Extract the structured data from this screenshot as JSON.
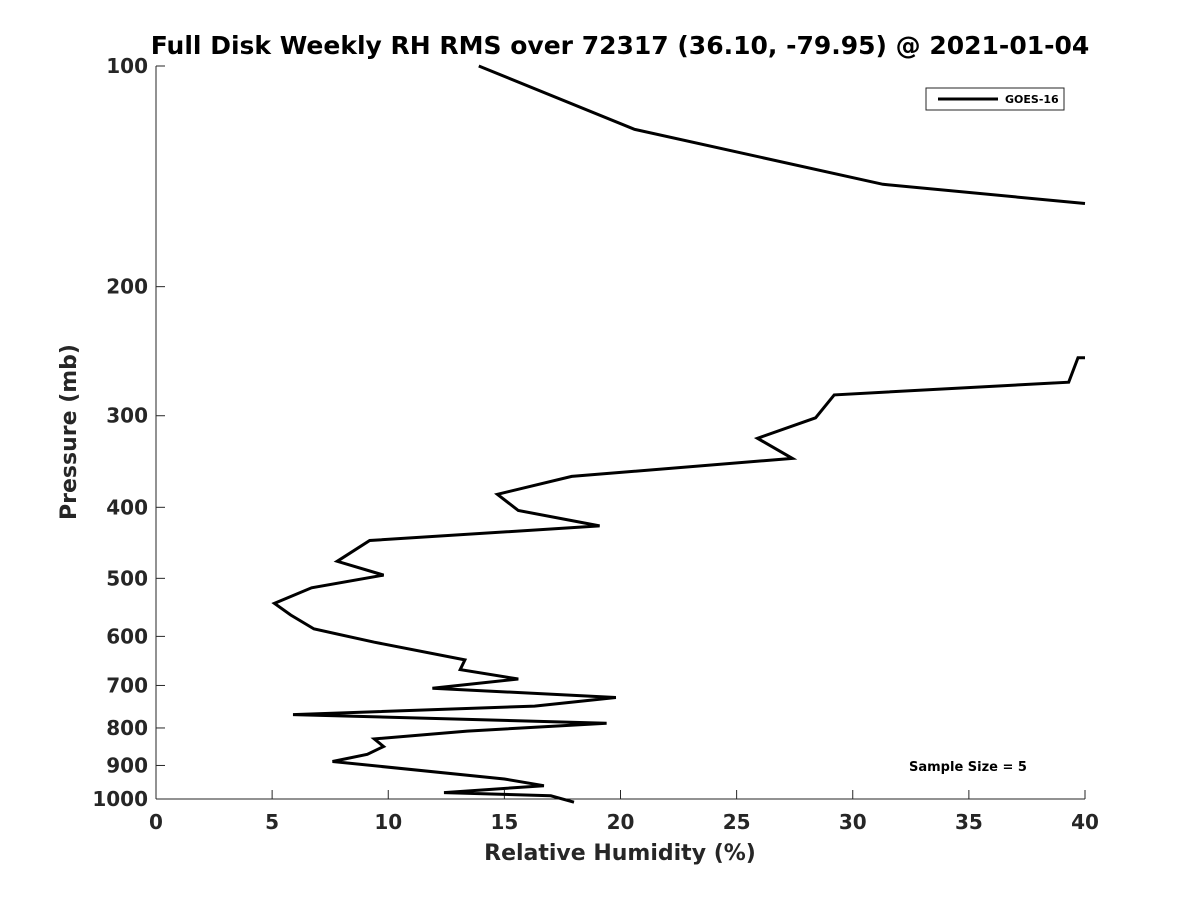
{
  "chart_data": {
    "type": "line",
    "title": "Full Disk Weekly RH RMS over 72317 (36.10, -79.95) @ 2021-01-04",
    "xlabel": "Relative Humidity (%)",
    "ylabel": "Pressure (mb)",
    "xlim": [
      0,
      40
    ],
    "ylim": [
      1000,
      100
    ],
    "y_scale": "log",
    "x_ticks": [
      0,
      5,
      10,
      15,
      20,
      25,
      30,
      35,
      40
    ],
    "y_ticks": [
      100,
      200,
      300,
      400,
      500,
      600,
      700,
      800,
      900,
      1000
    ],
    "grid": false,
    "legend": {
      "position": "top-right",
      "entries": [
        "GOES-16"
      ]
    },
    "annotations": [
      {
        "text": "Sample Size = 5",
        "position": "bottom-right"
      }
    ],
    "series": [
      {
        "name": "GOES-16",
        "color": "#000000",
        "segments": [
          [
            {
              "x": 13.9,
              "y": 100
            },
            {
              "x": 20.6,
              "y": 122
            },
            {
              "x": 31.3,
              "y": 145
            },
            {
              "x": 40.0,
              "y": 154
            }
          ],
          [
            {
              "x": 40.0,
              "y": 250
            },
            {
              "x": 39.7,
              "y": 250
            },
            {
              "x": 39.3,
              "y": 270
            },
            {
              "x": 29.2,
              "y": 281
            },
            {
              "x": 28.4,
              "y": 302
            },
            {
              "x": 25.9,
              "y": 322
            },
            {
              "x": 27.4,
              "y": 343
            },
            {
              "x": 17.9,
              "y": 363
            },
            {
              "x": 14.7,
              "y": 384
            },
            {
              "x": 15.6,
              "y": 404
            },
            {
              "x": 19.1,
              "y": 424
            },
            {
              "x": 9.2,
              "y": 444
            },
            {
              "x": 7.8,
              "y": 474
            },
            {
              "x": 9.8,
              "y": 495
            },
            {
              "x": 6.7,
              "y": 515
            },
            {
              "x": 5.1,
              "y": 541
            },
            {
              "x": 5.8,
              "y": 561
            },
            {
              "x": 6.8,
              "y": 586
            },
            {
              "x": 9.4,
              "y": 611
            },
            {
              "x": 13.3,
              "y": 646
            },
            {
              "x": 13.1,
              "y": 666
            },
            {
              "x": 15.6,
              "y": 686
            },
            {
              "x": 11.9,
              "y": 706
            },
            {
              "x": 19.8,
              "y": 727
            },
            {
              "x": 16.3,
              "y": 747
            },
            {
              "x": 5.9,
              "y": 767
            },
            {
              "x": 19.4,
              "y": 788
            },
            {
              "x": 13.4,
              "y": 808
            },
            {
              "x": 9.4,
              "y": 828
            },
            {
              "x": 9.8,
              "y": 848
            },
            {
              "x": 9.1,
              "y": 869
            },
            {
              "x": 7.6,
              "y": 889
            },
            {
              "x": 15.0,
              "y": 939
            },
            {
              "x": 16.7,
              "y": 959
            },
            {
              "x": 12.4,
              "y": 980
            },
            {
              "x": 17.0,
              "y": 990
            },
            {
              "x": 18.0,
              "y": 1010
            }
          ]
        ]
      }
    ]
  }
}
